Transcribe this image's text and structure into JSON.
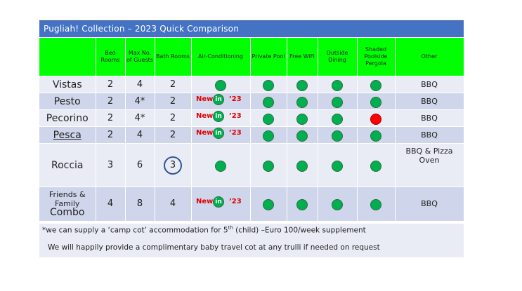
{
  "title": "Pugliah! Collection – 2023 Quick Comparison",
  "headers": [
    "",
    "Bed Rooms",
    "Max No. of Guests",
    "Bath Rooms",
    "Air-Conditioning",
    "Private Pool",
    "Free WiFi",
    "Outside Dining",
    "Shaded Poolside Pergola",
    "Other"
  ],
  "new_label": {
    "prefix": "New",
    "middle": "in",
    "suffix": "’23"
  },
  "rows": [
    {
      "name": "Vistas",
      "beds": "2",
      "guests": "4",
      "baths": "2",
      "other": "BBQ"
    },
    {
      "name": "Pesto",
      "beds": "2",
      "guests": "4*",
      "baths": "2",
      "other": "BBQ"
    },
    {
      "name": "Pecorino",
      "beds": "2",
      "guests": "4*",
      "baths": "2",
      "other": "BBQ"
    },
    {
      "name": "Pesca",
      "beds": "2",
      "guests": "4",
      "baths": "2",
      "other": "BBQ"
    },
    {
      "name": "Roccia",
      "beds": "3",
      "guests": "6",
      "baths": "3",
      "other": "BBQ & Pizza Oven"
    },
    {
      "name_line1": "Friends &",
      "name_line2": "Family",
      "name_line3": "Combo",
      "beds": "4",
      "guests": "8",
      "baths": "4",
      "other": "BBQ"
    }
  ],
  "notes": {
    "line1_a": "*we can supply a ‘camp cot’ accommodation for 5",
    "line1_sup": "th",
    "line1_b": " (child) –Euro 100/week supplement",
    "line2": "We will happily provide a complimentary baby travel cot at any trulli if needed on request"
  },
  "colors": {
    "title_bar": "#4472c4",
    "header_bg": "#00ff00",
    "row_light": "#e9ecf5",
    "row_dark": "#cfd5ea",
    "dot_green": "#00b050",
    "dot_red": "#ff0000",
    "new_text": "#e00000"
  }
}
